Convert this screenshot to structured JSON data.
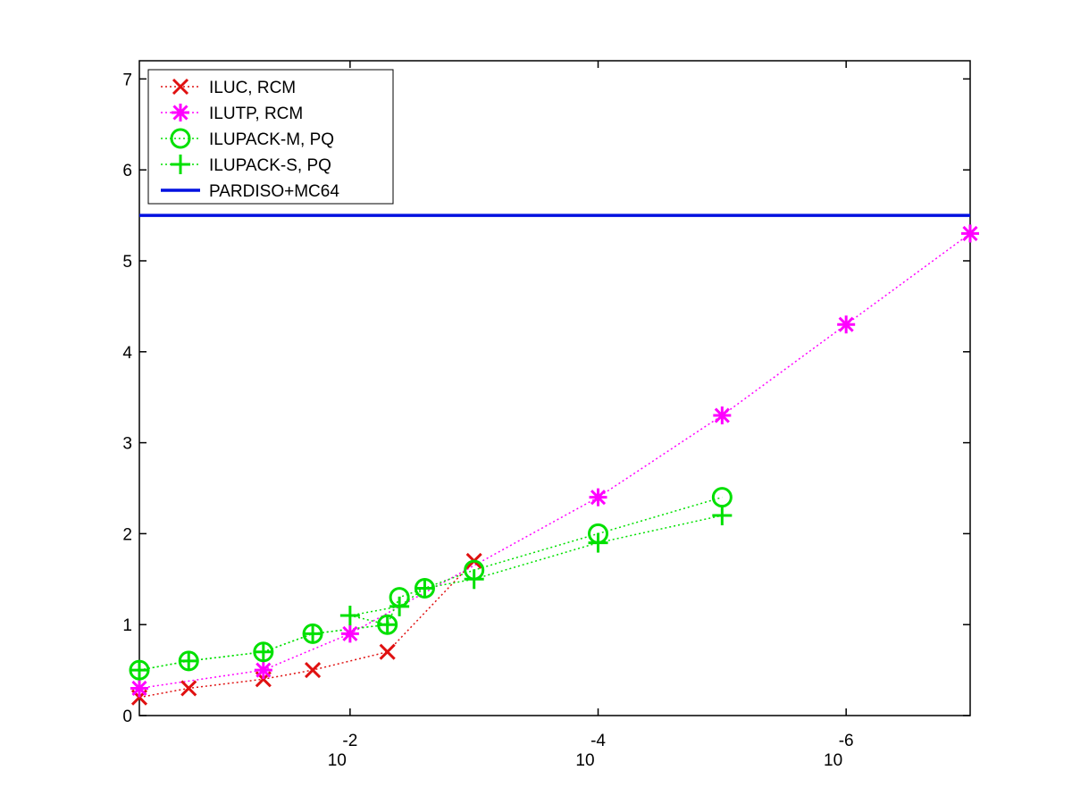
{
  "chart_data": {
    "type": "line",
    "x_scale": "log-reversed",
    "xlim": [
      0.5,
      1e-07
    ],
    "ylim": [
      0,
      7.2
    ],
    "x_ticks": [
      {
        "value": 0.01,
        "base": "10",
        "exp": "-2"
      },
      {
        "value": 0.0001,
        "base": "10",
        "exp": "-4"
      },
      {
        "value": 1e-06,
        "base": "10",
        "exp": "-6"
      }
    ],
    "y_ticks": [
      "0",
      "1",
      "2",
      "3",
      "4",
      "5",
      "6",
      "7"
    ],
    "legend_position": "top-left",
    "grid": false,
    "series": [
      {
        "name": "ILUC, RCM",
        "color": "#e01010",
        "marker": "x",
        "style": "dotted",
        "x": [
          0.5,
          0.2,
          0.05,
          0.02,
          0.005,
          0.001
        ],
        "y": [
          0.2,
          0.3,
          0.4,
          0.5,
          0.7,
          1.7
        ]
      },
      {
        "name": "ILUTP, RCM",
        "color": "#ff00ff",
        "marker": "asterisk",
        "style": "dotted",
        "x": [
          0.5,
          0.05,
          0.01,
          0.0001,
          1e-05,
          1e-06,
          1e-07
        ],
        "y": [
          0.3,
          0.5,
          0.9,
          2.4,
          3.3,
          4.3,
          5.3
        ]
      },
      {
        "name": "ILUPACK-M, PQ",
        "color": "#00e000",
        "marker": "circle",
        "style": "dotted",
        "x": [
          0.5,
          0.2,
          0.05,
          0.02,
          0.005,
          0.001,
          0.0001,
          1e-05,
          0.004,
          0.0025
        ],
        "y": [
          0.5,
          0.6,
          0.7,
          0.9,
          1.0,
          1.6,
          2.0,
          2.4,
          1.3,
          1.4
        ],
        "order": [
          0,
          1,
          2,
          3,
          4,
          8,
          9,
          5,
          6,
          7
        ]
      },
      {
        "name": "ILUPACK-S, PQ",
        "color": "#00e000",
        "marker": "plus",
        "style": "dotted",
        "x": [
          0.5,
          0.2,
          0.05,
          0.02,
          0.005,
          0.01,
          0.004,
          0.0025,
          0.001,
          0.0001,
          1e-05
        ],
        "y": [
          0.5,
          0.6,
          0.7,
          0.9,
          1.0,
          1.1,
          1.2,
          1.4,
          1.5,
          1.9,
          2.2
        ]
      },
      {
        "name": "PARDISO+MC64",
        "color": "#0010e0",
        "marker": "none",
        "style": "solid",
        "x": [
          0.5,
          1e-07
        ],
        "y": [
          5.5,
          5.5
        ]
      }
    ]
  }
}
